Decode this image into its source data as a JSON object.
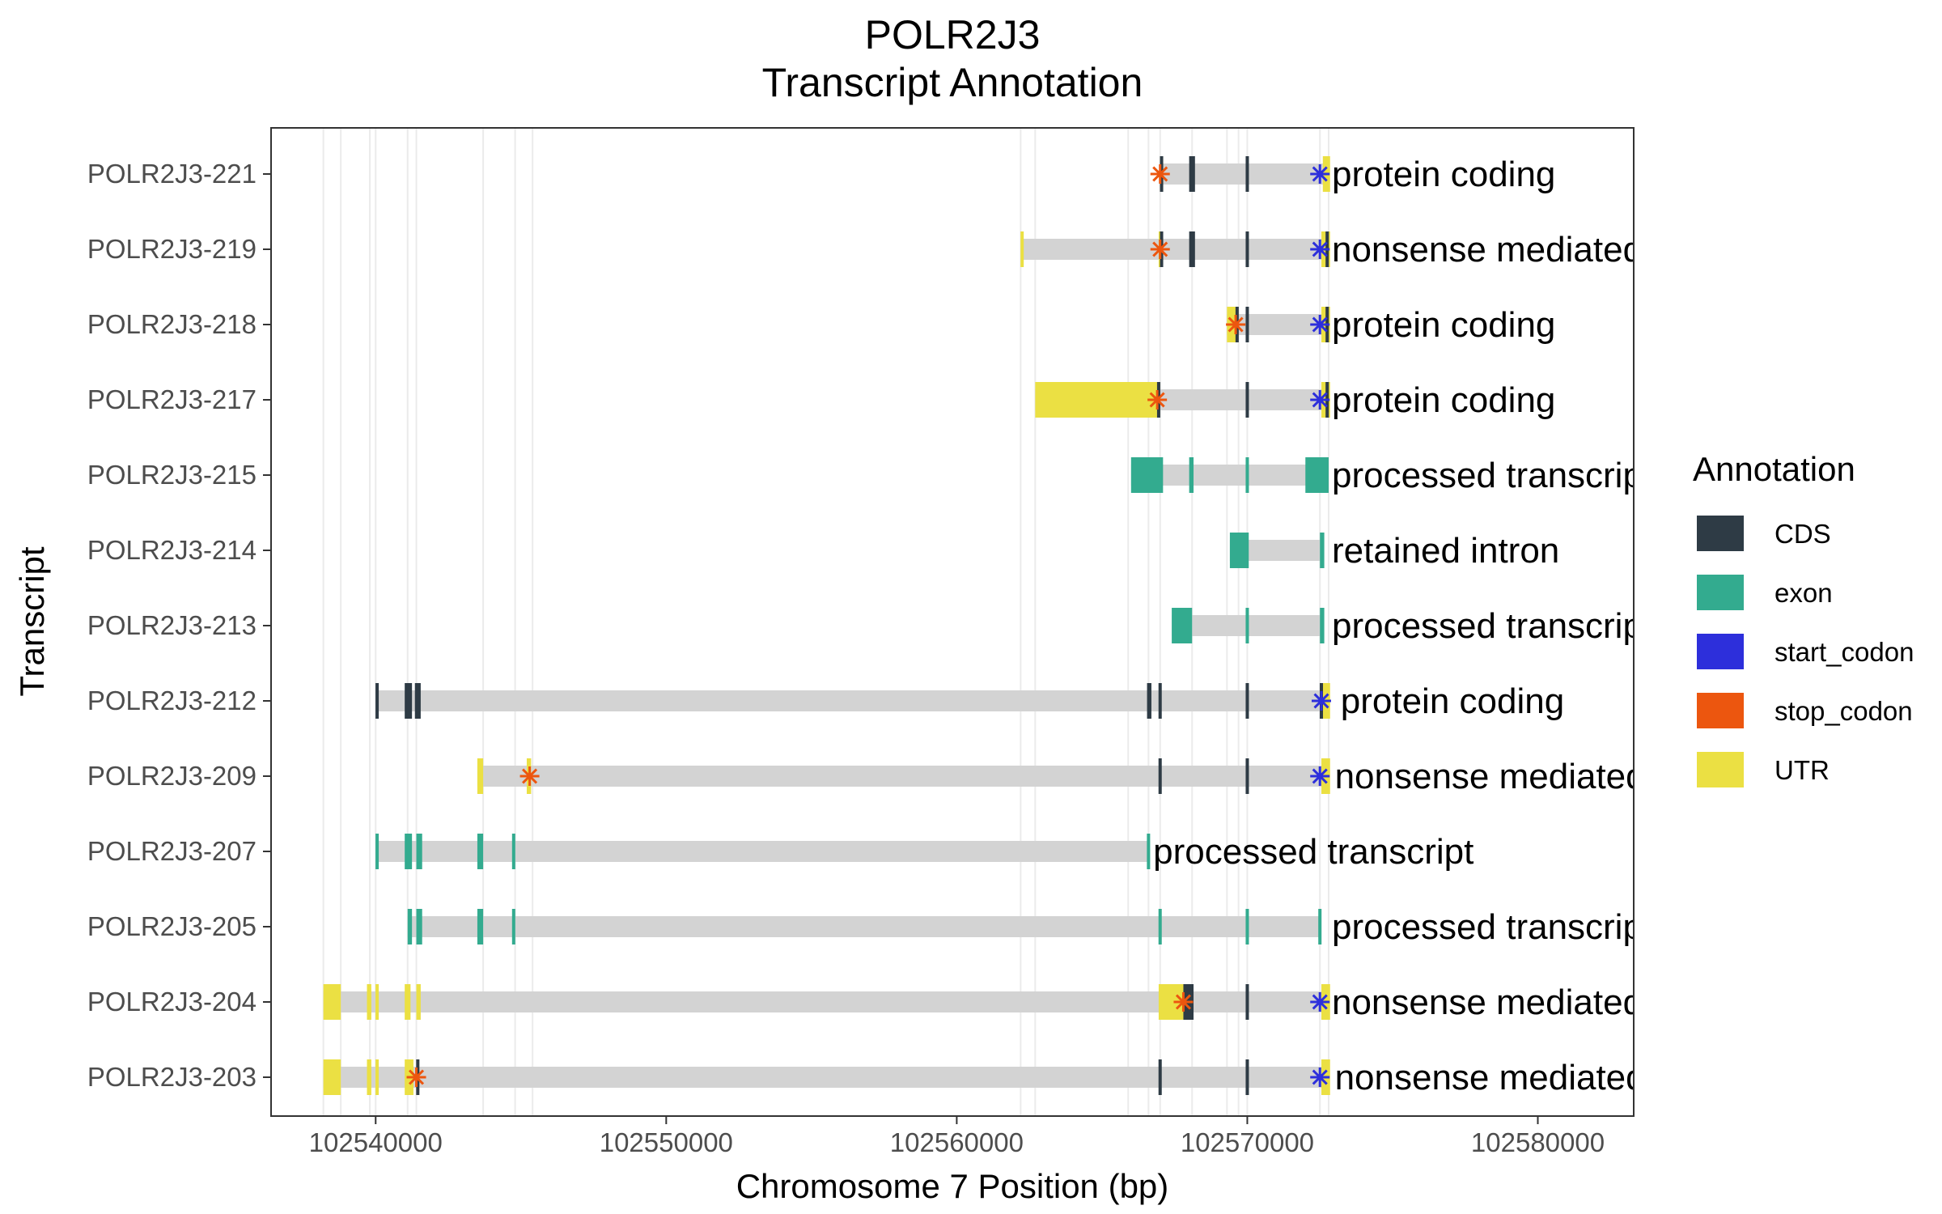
{
  "chart_data": {
    "type": "gene-track",
    "title_lines": [
      "POLR2J3",
      "Transcript Annotation"
    ],
    "xlabel": "Chromosome 7 Position (bp)",
    "ylabel": "Transcript",
    "xlim": [
      102536400,
      102583300
    ],
    "x_ticks": [
      {
        "value": 102540000,
        "label": "102540000"
      },
      {
        "value": 102550000,
        "label": "102550000"
      },
      {
        "value": 102560000,
        "label": "102560000"
      },
      {
        "value": 102570000,
        "label": "102570000"
      },
      {
        "value": 102580000,
        "label": "102580000"
      }
    ],
    "grid_lines": [
      102538200,
      102538800,
      102539800,
      102540000,
      102541100,
      102541400,
      102543700,
      102544800,
      102545400,
      102562200,
      102562700,
      102565900,
      102566600,
      102567000,
      102568100,
      102569300,
      102569700,
      102570000,
      102572500,
      102572800
    ],
    "legend": {
      "title": "Annotation",
      "placement": "right",
      "items": [
        {
          "key": "CDS",
          "label": "CDS",
          "color": "#2e3b45"
        },
        {
          "key": "exon",
          "label": "exon",
          "color": "#33ab8f"
        },
        {
          "key": "start_codon",
          "label": "start_codon",
          "color": "#2d2fdb"
        },
        {
          "key": "stop_codon",
          "label": "stop_codon",
          "color": "#ec560f"
        },
        {
          "key": "UTR",
          "label": "UTR",
          "color": "#ebe043"
        }
      ]
    },
    "intron_color": "#d3d3d3",
    "transcripts": [
      {
        "name": "POLR2J3-221",
        "type": "protein coding",
        "start": 102567000,
        "end": 102572800,
        "label_x": 102572800,
        "features": [
          [
            "UTR",
            102567000,
            102567100
          ],
          [
            "CDS",
            102567000,
            102567100
          ],
          [
            "CDS",
            102568000,
            102568200
          ],
          [
            "CDS",
            102569950,
            102570050
          ],
          [
            "CDS",
            102572700,
            102572800
          ],
          [
            "UTR",
            102572600,
            102572850
          ]
        ],
        "stop": 102567000,
        "start_codon": 102572500
      },
      {
        "name": "POLR2J3-219",
        "type": "nonsense mediated decay",
        "start": 102562200,
        "end": 102572800,
        "label_x": 102572800,
        "features": [
          [
            "UTR",
            102562200,
            102562300
          ],
          [
            "UTR",
            102566950,
            102567100
          ],
          [
            "CDS",
            102567000,
            102567100
          ],
          [
            "CDS",
            102568000,
            102568200
          ],
          [
            "CDS",
            102569950,
            102570050
          ],
          [
            "UTR",
            102572550,
            102572850
          ],
          [
            "CDS",
            102572700,
            102572800
          ]
        ],
        "stop": 102567000,
        "start_codon": 102572500
      },
      {
        "name": "POLR2J3-218",
        "type": "protein coding",
        "start": 102569300,
        "end": 102572800,
        "label_x": 102572800,
        "features": [
          [
            "UTR",
            102569300,
            102569650
          ],
          [
            "CDS",
            102569600,
            102569700
          ],
          [
            "CDS",
            102569950,
            102570050
          ],
          [
            "UTR",
            102572550,
            102572850
          ],
          [
            "CDS",
            102572700,
            102572800
          ]
        ],
        "stop": 102569600,
        "start_codon": 102572500
      },
      {
        "name": "POLR2J3-217",
        "type": "protein coding",
        "start": 102562700,
        "end": 102572800,
        "label_x": 102572800,
        "features": [
          [
            "UTR",
            102562700,
            102567000
          ],
          [
            "CDS",
            102566900,
            102567000
          ],
          [
            "CDS",
            102569950,
            102570050
          ],
          [
            "UTR",
            102572550,
            102572850
          ],
          [
            "CDS",
            102572700,
            102572800
          ]
        ],
        "stop": 102566900,
        "start_codon": 102572500
      },
      {
        "name": "POLR2J3-215",
        "type": "processed transcript",
        "start": 102566000,
        "end": 102572800,
        "label_x": 102572800,
        "features": [
          [
            "exon",
            102566000,
            102567100
          ],
          [
            "exon",
            102568000,
            102568150
          ],
          [
            "exon",
            102569950,
            102570050
          ],
          [
            "exon",
            102572000,
            102572800
          ]
        ],
        "stop": null,
        "start_codon": null
      },
      {
        "name": "POLR2J3-214",
        "type": "retained intron",
        "start": 102569400,
        "end": 102572600,
        "label_x": 102572800,
        "features": [
          [
            "exon",
            102569400,
            102570050
          ],
          [
            "exon",
            102572500,
            102572650
          ]
        ],
        "stop": null,
        "start_codon": null
      },
      {
        "name": "POLR2J3-213",
        "type": "processed transcript",
        "start": 102567400,
        "end": 102572600,
        "label_x": 102572800,
        "features": [
          [
            "exon",
            102567400,
            102568100
          ],
          [
            "exon",
            102569950,
            102570050
          ],
          [
            "exon",
            102572500,
            102572650
          ]
        ],
        "stop": null,
        "start_codon": null
      },
      {
        "name": "POLR2J3-212",
        "type": "protein coding",
        "start": 102540000,
        "end": 102572800,
        "label_x": 102573100,
        "features": [
          [
            "CDS",
            102540000,
            102540100
          ],
          [
            "CDS",
            102541000,
            102541250
          ],
          [
            "CDS",
            102541350,
            102541550
          ],
          [
            "CDS",
            102566550,
            102566700
          ],
          [
            "CDS",
            102566950,
            102567050
          ],
          [
            "CDS",
            102569950,
            102570050
          ],
          [
            "UTR",
            102572550,
            102572850
          ],
          [
            "CDS",
            102572500,
            102572600
          ]
        ],
        "stop": null,
        "start_codon": 102572550
      },
      {
        "name": "POLR2J3-209",
        "type": "nonsense mediated decay",
        "start": 102543500,
        "end": 102572800,
        "label_x": 102572900,
        "features": [
          [
            "UTR",
            102543500,
            102543700
          ],
          [
            "UTR",
            102545200,
            102545350
          ],
          [
            "CDS",
            102566950,
            102567050
          ],
          [
            "CDS",
            102569950,
            102570050
          ],
          [
            "UTR",
            102572550,
            102572850
          ]
        ],
        "stop": 102545300,
        "start_codon": 102572500
      },
      {
        "name": "POLR2J3-207",
        "type": "processed transcript",
        "start": 102540000,
        "end": 102566650,
        "label_x": 102566650,
        "features": [
          [
            "exon",
            102540000,
            102540100
          ],
          [
            "exon",
            102541000,
            102541250
          ],
          [
            "exon",
            102541400,
            102541600
          ],
          [
            "exon",
            102543500,
            102543700
          ],
          [
            "exon",
            102544700,
            102544800
          ],
          [
            "exon",
            102566550,
            102566650
          ]
        ],
        "stop": null,
        "start_codon": null
      },
      {
        "name": "POLR2J3-205",
        "type": "processed transcript",
        "start": 102541100,
        "end": 102572500,
        "label_x": 102572800,
        "features": [
          [
            "exon",
            102541100,
            102541250
          ],
          [
            "exon",
            102541400,
            102541600
          ],
          [
            "exon",
            102543500,
            102543700
          ],
          [
            "exon",
            102544700,
            102544800
          ],
          [
            "exon",
            102566950,
            102567050
          ],
          [
            "exon",
            102569950,
            102570050
          ],
          [
            "exon",
            102572450,
            102572550
          ]
        ],
        "stop": null,
        "start_codon": null
      },
      {
        "name": "POLR2J3-204",
        "type": "nonsense mediated decay",
        "start": 102538200,
        "end": 102572800,
        "label_x": 102572800,
        "features": [
          [
            "UTR",
            102538200,
            102538800
          ],
          [
            "UTR",
            102539700,
            102539850
          ],
          [
            "UTR",
            102540000,
            102540100
          ],
          [
            "UTR",
            102541000,
            102541200
          ],
          [
            "UTR",
            102541400,
            102541550
          ],
          [
            "UTR",
            102566950,
            102567800
          ],
          [
            "CDS",
            102567800,
            102568150
          ],
          [
            "CDS",
            102569950,
            102570050
          ],
          [
            "UTR",
            102572550,
            102572850
          ]
        ],
        "stop": 102567800,
        "start_codon": 102572500
      },
      {
        "name": "POLR2J3-203",
        "type": "nonsense mediated decay",
        "start": 102538200,
        "end": 102572800,
        "label_x": 102572900,
        "features": [
          [
            "UTR",
            102538200,
            102538800
          ],
          [
            "UTR",
            102539700,
            102539850
          ],
          [
            "UTR",
            102540000,
            102540100
          ],
          [
            "UTR",
            102541000,
            102541300
          ],
          [
            "CDS",
            102541400,
            102541500
          ],
          [
            "CDS",
            102566950,
            102567050
          ],
          [
            "CDS",
            102569950,
            102570050
          ],
          [
            "UTR",
            102572550,
            102572850
          ]
        ],
        "stop": 102541400,
        "start_codon": 102572500
      }
    ]
  }
}
